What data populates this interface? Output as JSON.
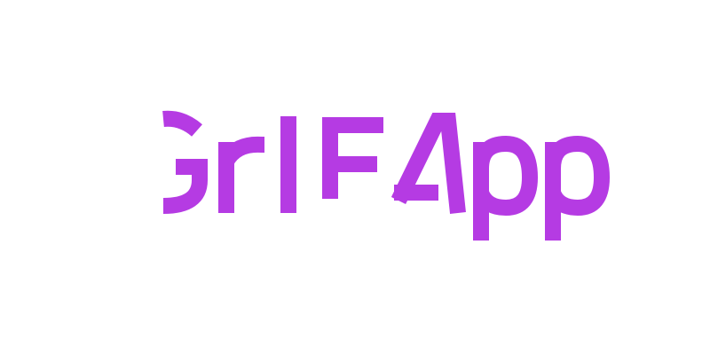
{
  "logo": {
    "text": "GrIFApp",
    "color": "#b53be3"
  }
}
